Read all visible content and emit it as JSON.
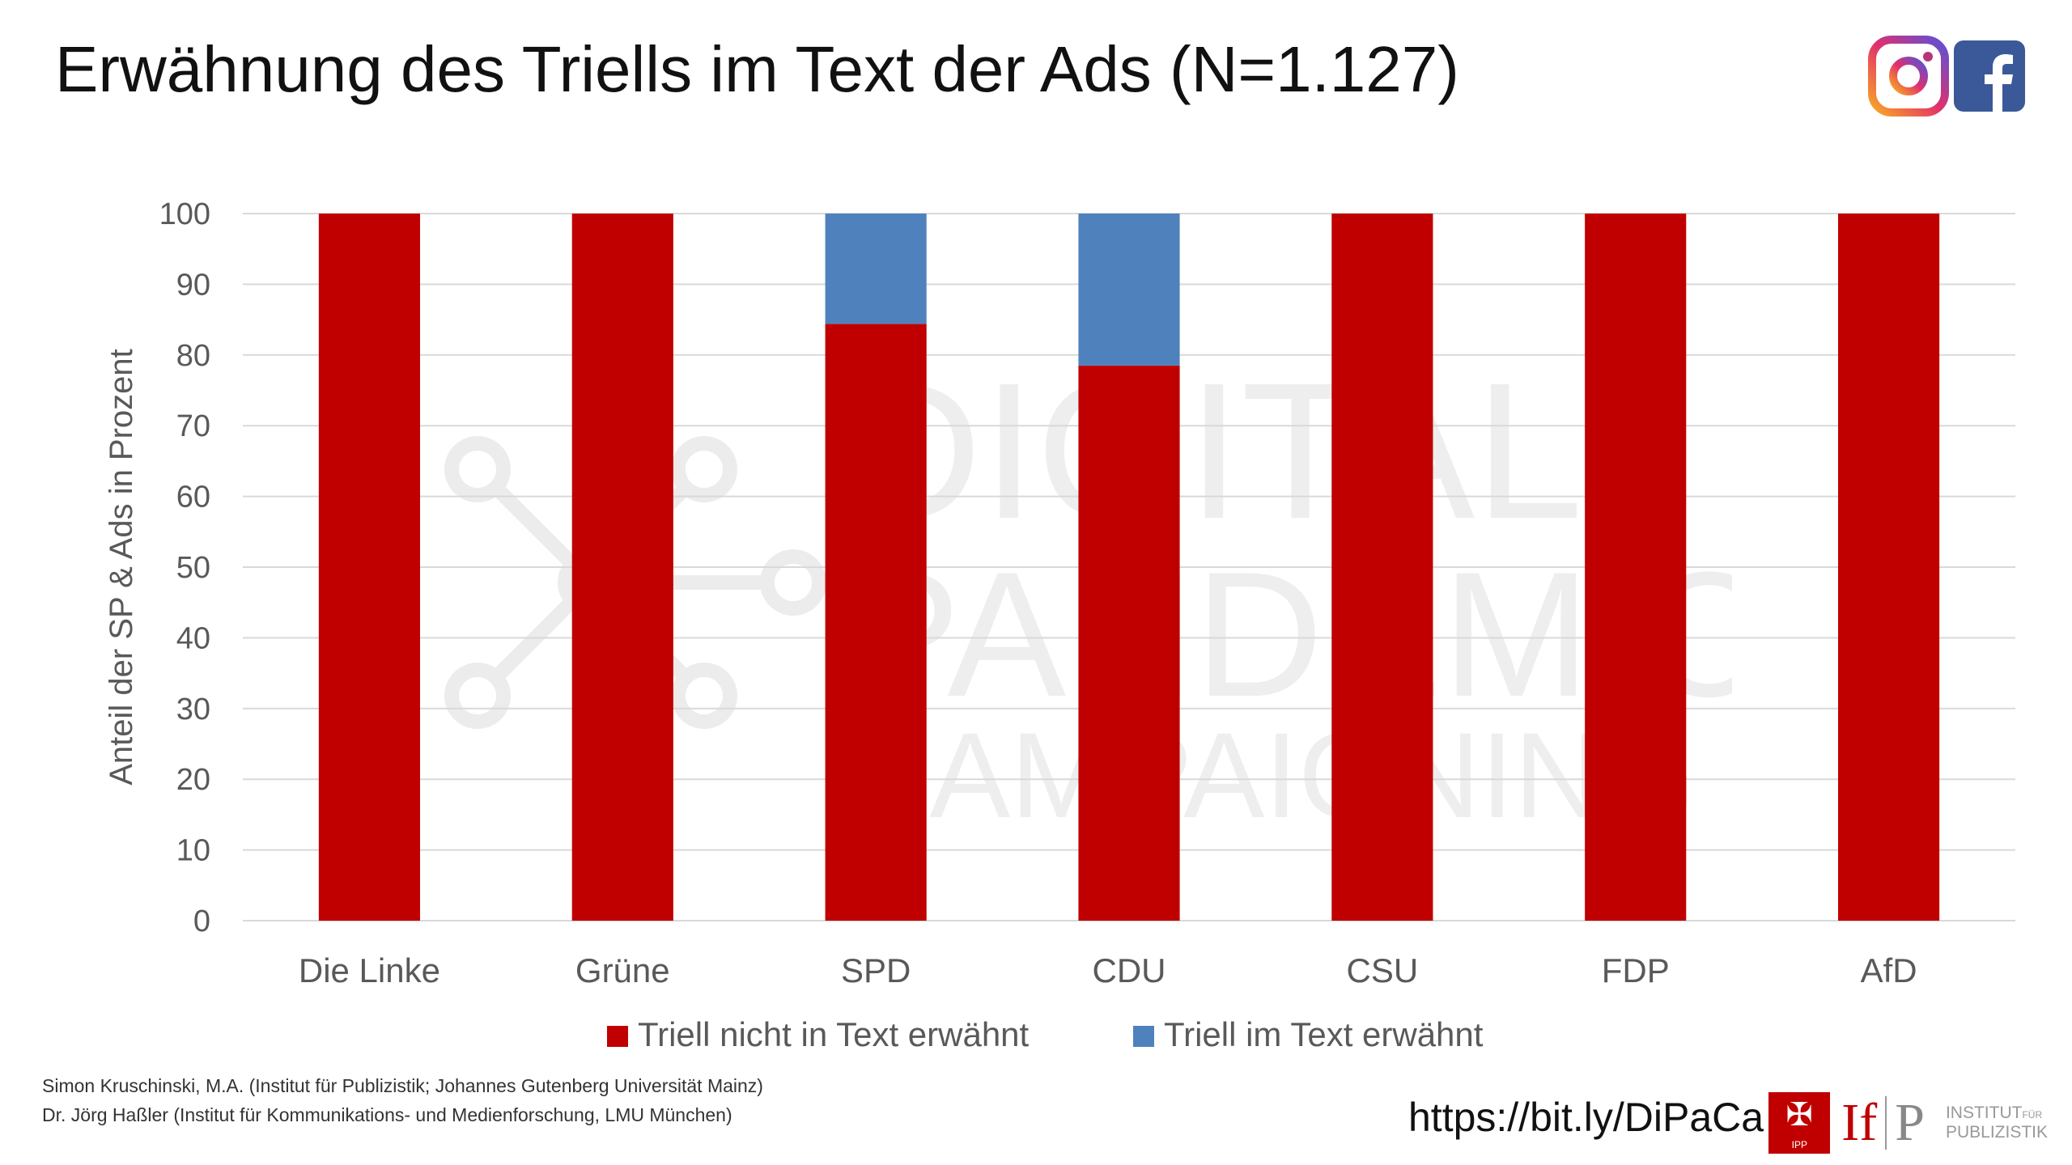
{
  "title": "Erwähnung des Triells im Text der Ads (N=1.127)",
  "header_icons": [
    "instagram-icon",
    "facebook-icon"
  ],
  "watermark_text": [
    "DIGITAL",
    "PANDEMIC",
    "CAMPAIGNING"
  ],
  "chart_data": {
    "type": "bar",
    "stacked": true,
    "categories": [
      "Die Linke",
      "Grüne",
      "SPD",
      "CDU",
      "CSU",
      "FDP",
      "AfD"
    ],
    "series": [
      {
        "name": "Triell nicht in Text erwähnt",
        "color": "#c00000",
        "values": [
          100,
          100,
          84.4,
          78.5,
          100,
          100,
          100
        ]
      },
      {
        "name": "Triell im Text erwähnt",
        "color": "#4f81bd",
        "values": [
          0,
          0,
          15.6,
          21.5,
          0,
          0,
          0
        ]
      }
    ],
    "ylabel": "Anteil der SP & Ads in Prozent",
    "xlabel": "",
    "ylim": [
      0,
      100
    ],
    "yticks": [
      0,
      10,
      20,
      30,
      40,
      50,
      60,
      70,
      80,
      90,
      100
    ],
    "grid": true,
    "legend_position": "bottom"
  },
  "footer": {
    "author1": "Simon Kruschinski, M.A. (Institut für Publizistik; Johannes Gutenberg Universität Mainz)",
    "author2": "Dr. Jörg Haßler (Institut für Kommunikations- und Medienforschung, LMU München)",
    "url": "https://bit.ly/DiPaCa"
  },
  "logos": {
    "ipp_label": "IPP",
    "ifp_if": "If",
    "ifp_p": "P",
    "institut": "INSTITUT",
    "fuer": "FÜR",
    "publizistik": "PUBLIZISTIK"
  }
}
